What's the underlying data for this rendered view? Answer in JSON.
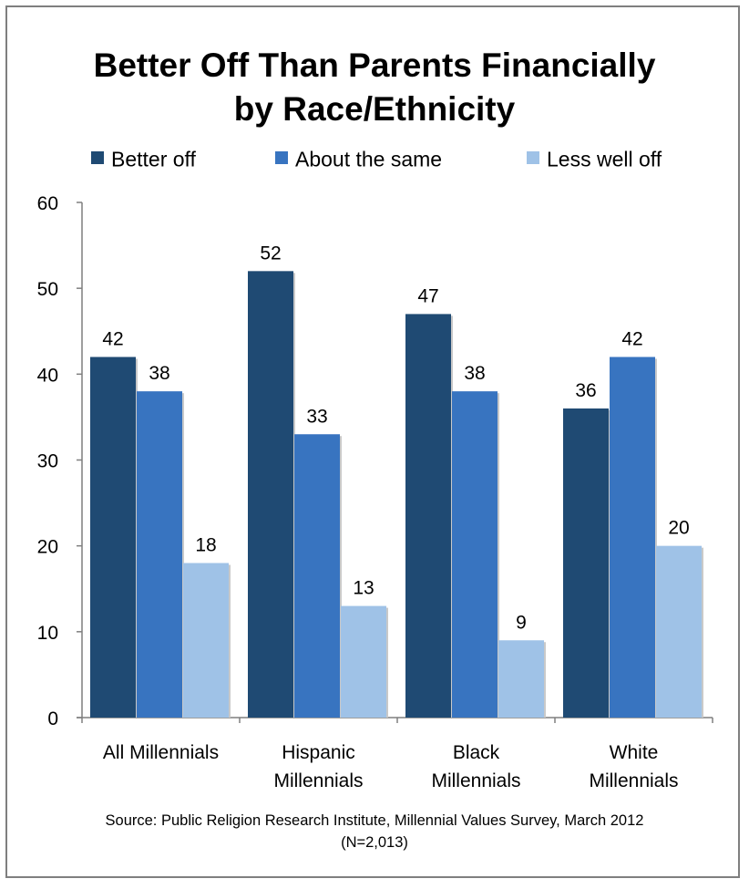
{
  "chart_data": {
    "type": "bar",
    "title_line1": "Better Off Than Parents Financially",
    "title_line2": "by Race/Ethnicity",
    "categories": [
      [
        "All Millennials"
      ],
      [
        "Hispanic",
        "Millennials"
      ],
      [
        "Black",
        "Millennials"
      ],
      [
        "White",
        "Millennials"
      ]
    ],
    "series": [
      {
        "name": "Better off",
        "color": "#1f4a73",
        "values": [
          42,
          52,
          47,
          36
        ]
      },
      {
        "name": "About the same",
        "color": "#3874c0",
        "values": [
          38,
          33,
          38,
          42
        ]
      },
      {
        "name": "Less well off",
        "color": "#9fc2e7",
        "values": [
          18,
          13,
          9,
          20
        ]
      }
    ],
    "ylim": [
      0,
      60
    ],
    "yticks": [
      0,
      10,
      20,
      30,
      40,
      50,
      60
    ],
    "grid": false,
    "legend_position": "top",
    "data_labels": true,
    "source_line1": "Source: Public Religion Research Institute, Millennial Values Survey, March 2012",
    "source_line2": "(N=2,013)"
  }
}
